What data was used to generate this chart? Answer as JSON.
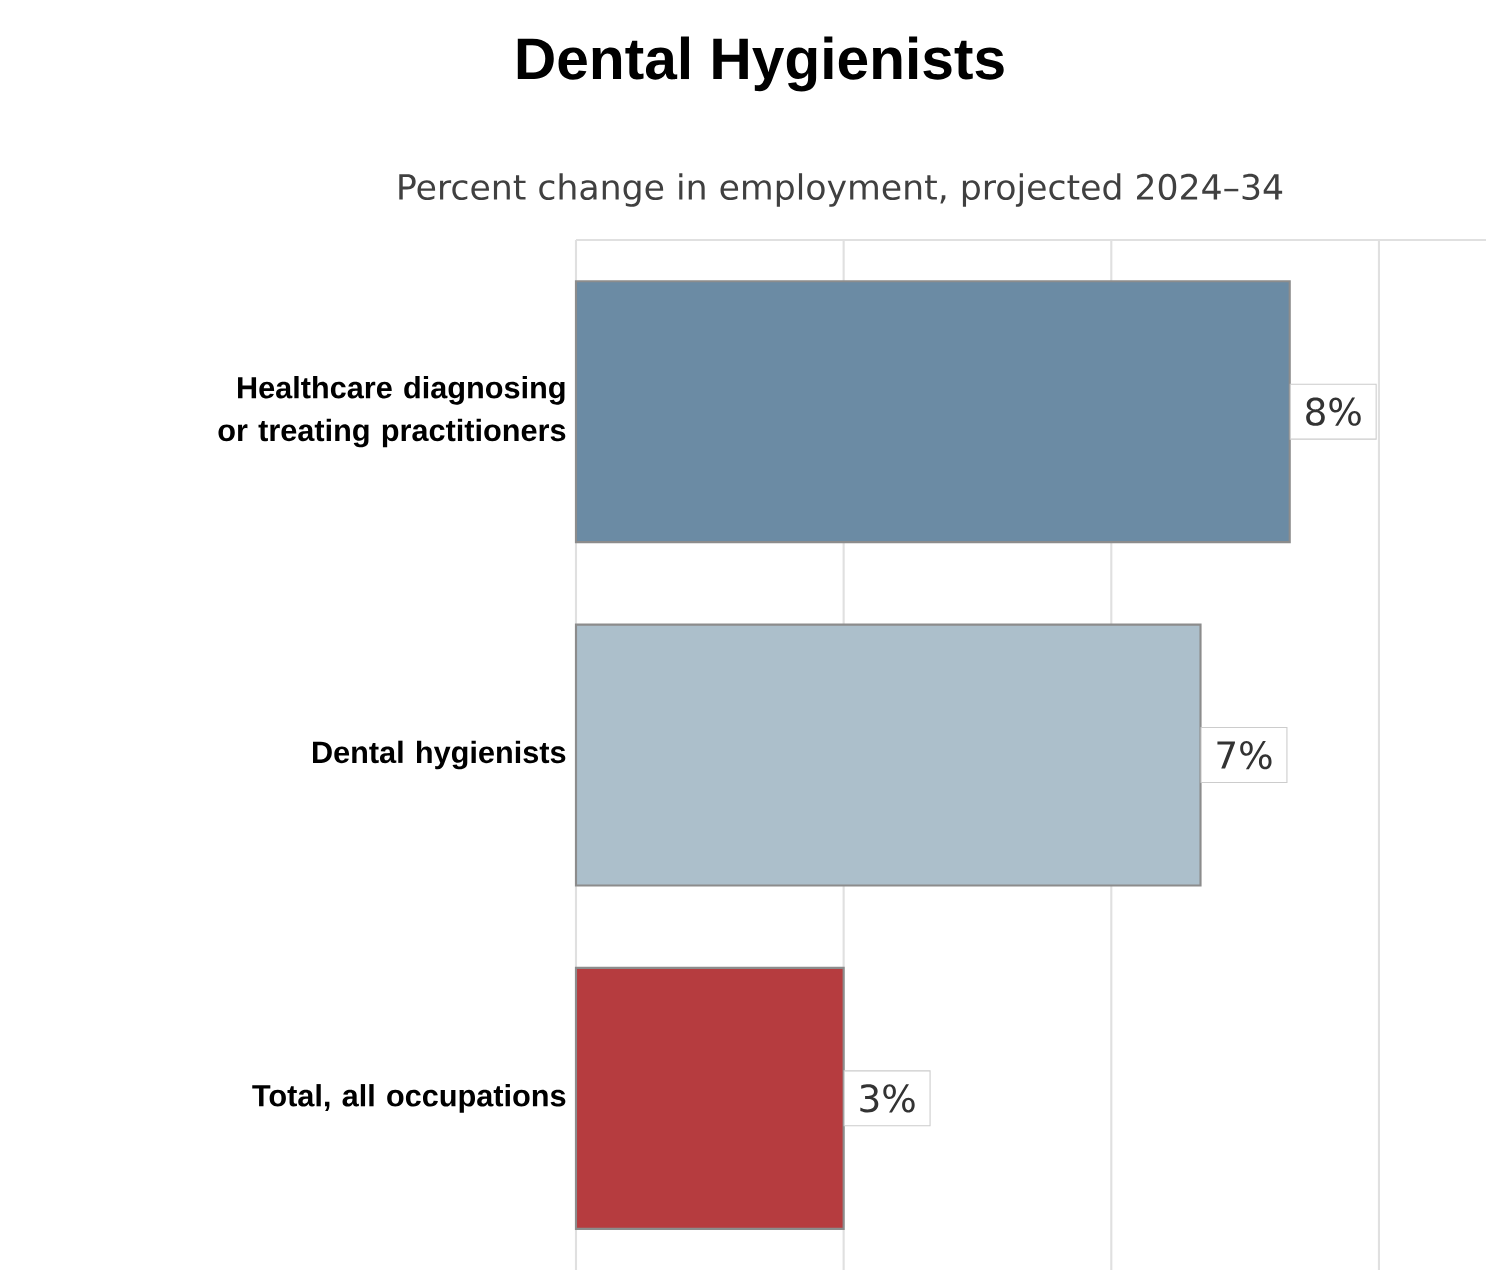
{
  "chart_data": {
    "type": "bar",
    "orientation": "horizontal",
    "title": "Dental Hygienists",
    "subtitle": "Percent change in employment, projected 2024–34",
    "categories": [
      "Healthcare diagnosing or treating practitioners",
      "Dental hygienists",
      "Total, all occupations"
    ],
    "values": [
      8,
      7,
      3
    ],
    "colors": [
      "#6b8ba4",
      "#acbfcb",
      "#b63c3f"
    ],
    "value_labels": [
      "8%",
      "7%",
      "3%"
    ],
    "xlim": [
      0,
      10.2
    ],
    "xticks": [
      {
        "value": 0,
        "label": null
      },
      {
        "value": 3,
        "label": null
      },
      {
        "value": 6,
        "label": null
      },
      {
        "value": 9,
        "label": null
      }
    ],
    "grid": "x",
    "tick_labels": "y"
  }
}
